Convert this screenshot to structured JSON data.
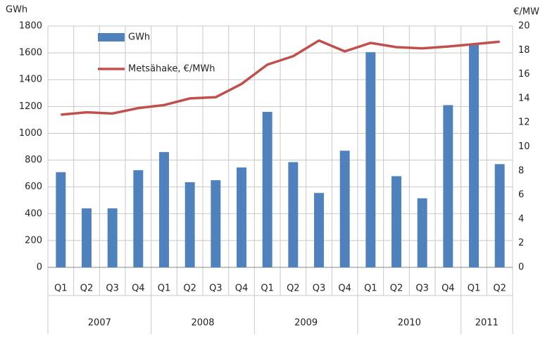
{
  "chart_data": {
    "type": "bar_line",
    "y_axis_label": "GWh",
    "y2_axis_label": "€/MW",
    "categories": [
      "Q1",
      "Q2",
      "Q3",
      "Q4",
      "Q1",
      "Q2",
      "Q3",
      "Q4",
      "Q1",
      "Q2",
      "Q3",
      "Q4",
      "Q1",
      "Q2",
      "Q3",
      "Q4",
      "Q1",
      "Q2"
    ],
    "year_groups": [
      {
        "label": "2007",
        "count": 4
      },
      {
        "label": "2008",
        "count": 4
      },
      {
        "label": "2009",
        "count": 4
      },
      {
        "label": "2010",
        "count": 4
      },
      {
        "label": "2011",
        "count": 2
      }
    ],
    "series": [
      {
        "name": "GWh",
        "type": "bar",
        "color": "#4f81bd",
        "values": [
          710,
          440,
          440,
          725,
          860,
          635,
          650,
          745,
          1160,
          785,
          555,
          870,
          1605,
          680,
          515,
          1210,
          1665,
          770
        ]
      },
      {
        "name": "Metsähake, €/MWh",
        "type": "line",
        "axis": "y2",
        "color": "#c0504d",
        "values": [
          12.65,
          12.85,
          12.75,
          13.2,
          13.45,
          14.0,
          14.1,
          15.2,
          16.8,
          17.5,
          18.8,
          17.9,
          18.6,
          18.25,
          18.15,
          18.3,
          18.5,
          18.7
        ]
      }
    ],
    "ylim": [
      0,
      1800
    ],
    "yticks": [
      0,
      200,
      400,
      600,
      800,
      1000,
      1200,
      1400,
      1600,
      1800
    ],
    "y2lim": [
      0,
      20
    ],
    "y2ticks": [
      0,
      2,
      4,
      6,
      8,
      10,
      12,
      14,
      16,
      18,
      20
    ],
    "grid": true
  }
}
